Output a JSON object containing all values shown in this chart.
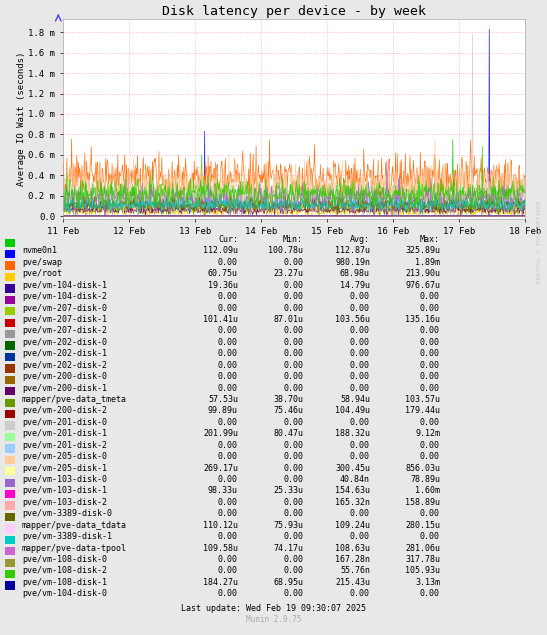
{
  "title": "Disk latency per device - by week",
  "ylabel": "Average IO Wait (seconds)",
  "background_color": "#e8e8e8",
  "plot_bg_color": "#ffffff",
  "grid_color": "#ff9999",
  "watermark": "RRDTOOL / TOBI OETIKER",
  "xtick_labels": [
    "11 Feb",
    "12 Feb",
    "13 Feb",
    "14 Feb",
    "15 Feb",
    "16 Feb",
    "17 Feb",
    "18 Feb"
  ],
  "ytick_vals": [
    0.0,
    0.0002,
    0.0004,
    0.0006,
    0.0008,
    0.001,
    0.0012,
    0.0014,
    0.0016,
    0.0018
  ],
  "ytick_labels": [
    "0.0",
    "0.2 m",
    "0.4 m",
    "0.6 m",
    "0.8 m",
    "1.0 m",
    "1.2 m",
    "1.4 m",
    "1.6 m",
    "1.8 m"
  ],
  "legend_entries": [
    {
      "label": "nvme0n1",
      "color": "#00cc00"
    },
    {
      "label": "pve/swap",
      "color": "#0000ff"
    },
    {
      "label": "pve/root",
      "color": "#ff6600"
    },
    {
      "label": "pve/vm-104-disk-1",
      "color": "#ffcc00"
    },
    {
      "label": "pve/vm-104-disk-2",
      "color": "#330099"
    },
    {
      "label": "pve/vm-207-disk-0",
      "color": "#990099"
    },
    {
      "label": "pve/vm-207-disk-1",
      "color": "#99cc00"
    },
    {
      "label": "pve/vm-207-disk-2",
      "color": "#cc0000"
    },
    {
      "label": "pve/vm-202-disk-0",
      "color": "#999999"
    },
    {
      "label": "pve/vm-202-disk-1",
      "color": "#006600"
    },
    {
      "label": "pve/vm-202-disk-2",
      "color": "#003399"
    },
    {
      "label": "pve/vm-200-disk-0",
      "color": "#993300"
    },
    {
      "label": "pve/vm-200-disk-1",
      "color": "#996600"
    },
    {
      "label": "mapper/pve-data_tmeta",
      "color": "#660066"
    },
    {
      "label": "pve/vm-200-disk-2",
      "color": "#669900"
    },
    {
      "label": "pve/vm-201-disk-0",
      "color": "#990000"
    },
    {
      "label": "pve/vm-201-disk-1",
      "color": "#cccccc"
    },
    {
      "label": "pve/vm-201-disk-2",
      "color": "#99ff99"
    },
    {
      "label": "pve/vm-205-disk-0",
      "color": "#99ccff"
    },
    {
      "label": "pve/vm-205-disk-1",
      "color": "#ffcc99"
    },
    {
      "label": "pve/vm-103-disk-0",
      "color": "#ffff99"
    },
    {
      "label": "pve/vm-103-disk-1",
      "color": "#9966cc"
    },
    {
      "label": "pve/vm-103-disk-2",
      "color": "#ff00cc"
    },
    {
      "label": "pve/vm-3389-disk-0",
      "color": "#ffaaaa"
    },
    {
      "label": "mapper/pve-data_tdata",
      "color": "#666600"
    },
    {
      "label": "pve/vm-3389-disk-1",
      "color": "#ffccff"
    },
    {
      "label": "mapper/pve-data-tpool",
      "color": "#00cccc"
    },
    {
      "label": "pve/vm-108-disk-0",
      "color": "#cc66cc"
    },
    {
      "label": "pve/vm-108-disk-2",
      "color": "#999933"
    },
    {
      "label": "pve/vm-108-disk-1",
      "color": "#33cc00"
    },
    {
      "label": "pve/vm-104-disk-0",
      "color": "#000099"
    }
  ],
  "table_data": [
    [
      "112.09u",
      "100.78u",
      "112.87u",
      "325.89u"
    ],
    [
      "0.00",
      "0.00",
      "980.19n",
      "1.89m"
    ],
    [
      "60.75u",
      "23.27u",
      "68.98u",
      "213.90u"
    ],
    [
      "19.36u",
      "0.00",
      "14.79u",
      "976.67u"
    ],
    [
      "0.00",
      "0.00",
      "0.00",
      "0.00"
    ],
    [
      "0.00",
      "0.00",
      "0.00",
      "0.00"
    ],
    [
      "101.41u",
      "87.01u",
      "103.56u",
      "135.16u"
    ],
    [
      "0.00",
      "0.00",
      "0.00",
      "0.00"
    ],
    [
      "0.00",
      "0.00",
      "0.00",
      "0.00"
    ],
    [
      "0.00",
      "0.00",
      "0.00",
      "0.00"
    ],
    [
      "0.00",
      "0.00",
      "0.00",
      "0.00"
    ],
    [
      "0.00",
      "0.00",
      "0.00",
      "0.00"
    ],
    [
      "0.00",
      "0.00",
      "0.00",
      "0.00"
    ],
    [
      "57.53u",
      "38.70u",
      "58.94u",
      "103.57u"
    ],
    [
      "99.89u",
      "75.46u",
      "104.49u",
      "179.44u"
    ],
    [
      "0.00",
      "0.00",
      "0.00",
      "0.00"
    ],
    [
      "201.99u",
      "80.47u",
      "188.32u",
      "9.12m"
    ],
    [
      "0.00",
      "0.00",
      "0.00",
      "0.00"
    ],
    [
      "0.00",
      "0.00",
      "0.00",
      "0.00"
    ],
    [
      "269.17u",
      "0.00",
      "300.45u",
      "856.03u"
    ],
    [
      "0.00",
      "0.00",
      "40.84n",
      "78.89u"
    ],
    [
      "98.33u",
      "25.33u",
      "154.63u",
      "1.60m"
    ],
    [
      "0.00",
      "0.00",
      "165.32n",
      "158.89u"
    ],
    [
      "0.00",
      "0.00",
      "0.00",
      "0.00"
    ],
    [
      "110.12u",
      "75.93u",
      "109.24u",
      "280.15u"
    ],
    [
      "0.00",
      "0.00",
      "0.00",
      "0.00"
    ],
    [
      "109.58u",
      "74.17u",
      "108.63u",
      "281.06u"
    ],
    [
      "0.00",
      "0.00",
      "167.28n",
      "317.78u"
    ],
    [
      "0.00",
      "0.00",
      "55.76n",
      "105.93u"
    ],
    [
      "184.27u",
      "68.95u",
      "215.43u",
      "3.13m"
    ],
    [
      "0.00",
      "0.00",
      "0.00",
      "0.00"
    ]
  ],
  "footer": "Last update: Wed Feb 19 09:30:07 2025",
  "munin_version": "Munin 2.0.75"
}
